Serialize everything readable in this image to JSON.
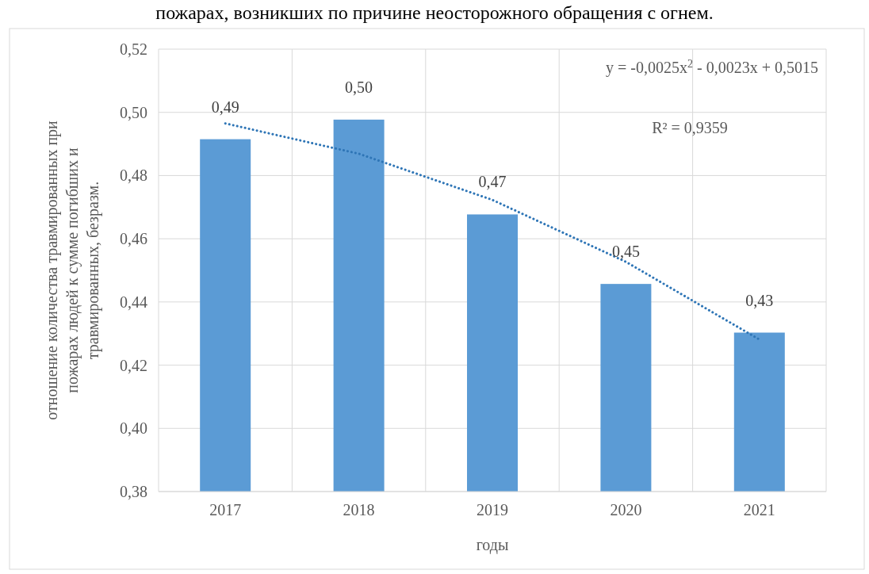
{
  "chart_data": {
    "type": "bar",
    "title": "пожарах, возникших по причине неосторожного обращения с огнем.",
    "xlabel": "годы",
    "ylabel": "отношение количества травмированных при\nпожарах людей к сумме погибших и\nтравмированных, безразм.",
    "categories": [
      "2017",
      "2018",
      "2019",
      "2020",
      "2021"
    ],
    "series": [
      {
        "color": "#5b9bd5",
        "values": [
          0.4915,
          0.4977,
          0.4677,
          0.4457,
          0.4303
        ],
        "value_labels": [
          "0,49",
          "0,50",
          "0,47",
          "0,45",
          "0,43"
        ]
      },
      {
        "type": "line",
        "color": "#2e75b6",
        "line_style": "dotted",
        "marker": "none",
        "values": [
          0.4965,
          0.4869,
          0.4723,
          0.4527,
          0.4281
        ]
      }
    ],
    "ylim": [
      0.38,
      0.52
    ],
    "yticks": [
      {
        "value": 0.38,
        "label": "0,38"
      },
      {
        "value": 0.4,
        "label": "0,40"
      },
      {
        "value": 0.42,
        "label": "0,42"
      },
      {
        "value": 0.44,
        "label": "0,44"
      },
      {
        "value": 0.46,
        "label": "0,46"
      },
      {
        "value": 0.48,
        "label": "0,48"
      },
      {
        "value": 0.5,
        "label": "0,50"
      },
      {
        "value": 0.52,
        "label": "0,52"
      }
    ],
    "grid": true,
    "annotations": [
      "y = -0,0025x$^{2}$ - 0,0023x + 0,5015",
      "R² = 0,9359"
    ]
  }
}
